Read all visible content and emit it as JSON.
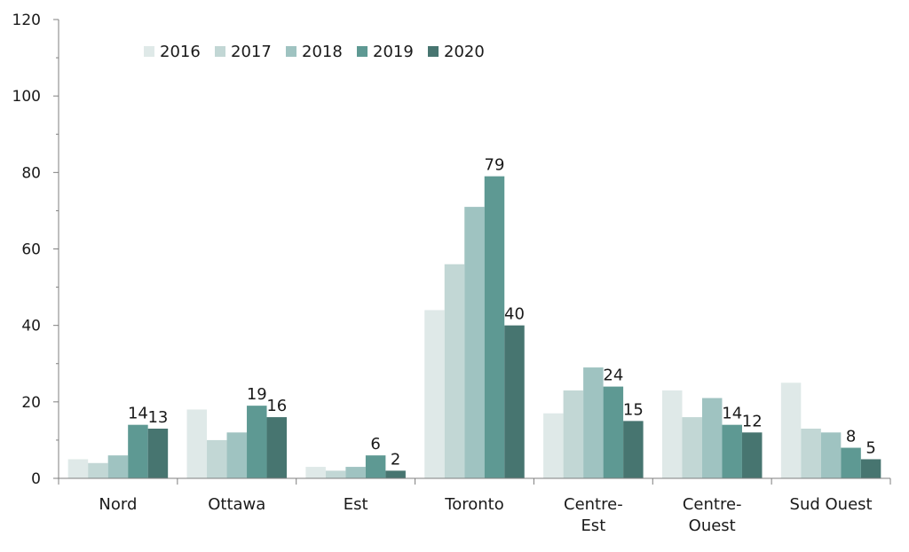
{
  "chart_data": {
    "type": "bar",
    "categories": [
      [
        "Nord"
      ],
      [
        "Ottawa"
      ],
      [
        "Est"
      ],
      [
        "Toronto"
      ],
      [
        "Centre-",
        "Est"
      ],
      [
        "Centre-",
        "Ouest"
      ],
      [
        "Sud Ouest"
      ]
    ],
    "series": [
      {
        "name": "2016",
        "color": "#dfe9e8",
        "values": [
          5,
          18,
          3,
          44,
          17,
          23,
          25
        ]
      },
      {
        "name": "2017",
        "color": "#c2d7d5",
        "values": [
          4,
          10,
          2,
          56,
          23,
          16,
          13
        ]
      },
      {
        "name": "2018",
        "color": "#9fc3c1",
        "values": [
          6,
          12,
          3,
          71,
          29,
          21,
          12
        ]
      },
      {
        "name": "2019",
        "color": "#5e9993",
        "values": [
          14,
          19,
          6,
          79,
          24,
          14,
          8
        ]
      },
      {
        "name": "2020",
        "color": "#477570",
        "values": [
          13,
          16,
          2,
          40,
          15,
          12,
          5
        ]
      }
    ],
    "data_labels": [
      [
        null,
        null,
        null,
        "14",
        "13"
      ],
      [
        null,
        null,
        null,
        "19",
        "16"
      ],
      [
        null,
        null,
        null,
        "6",
        "2"
      ],
      [
        null,
        null,
        null,
        "79",
        "40"
      ],
      [
        null,
        null,
        null,
        "24",
        "15"
      ],
      [
        null,
        null,
        null,
        "14",
        "12"
      ],
      [
        null,
        null,
        null,
        "8",
        "5"
      ]
    ],
    "ylim": [
      0,
      120
    ],
    "yticks": [
      0,
      20,
      40,
      60,
      80,
      100,
      120
    ],
    "title": "",
    "xlabel": "",
    "ylabel": "",
    "grid": false,
    "legend_position": "top-left"
  }
}
